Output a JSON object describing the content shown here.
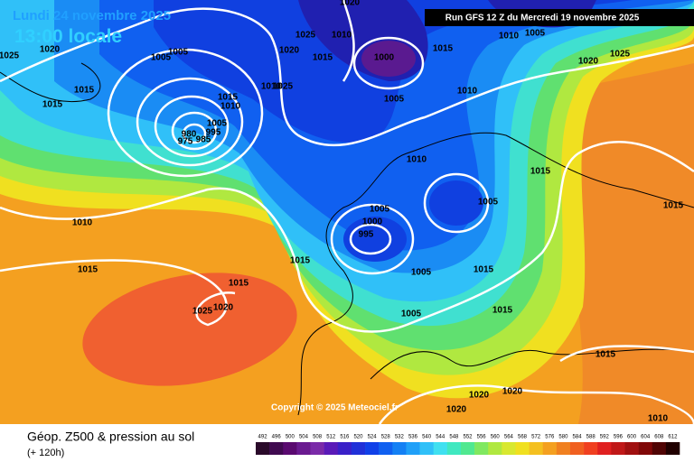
{
  "header": {
    "date": "Lundi 24 novembre 2025",
    "time": "13:00 locale",
    "run": "Run GFS 12 Z du Mercredi 19 novembre 2025"
  },
  "map": {
    "copyright": "Copyright © 2025 Meteociel.fr",
    "isobar_labels": [
      "1025",
      "1020",
      "1005",
      "1005",
      "1015",
      "1015",
      "1010",
      "1015",
      "1005",
      "995",
      "980",
      "975",
      "985",
      "1020",
      "1025",
      "1015",
      "1010",
      "1010",
      "1025",
      "1020",
      "1000",
      "1005",
      "1015",
      "1005",
      "1010",
      "1020",
      "1025",
      "1010",
      "1010",
      "1015",
      "1005",
      "1005",
      "1000",
      "995",
      "1015",
      "1010",
      "1015",
      "1015",
      "1015",
      "1005",
      "1015",
      "1005",
      "1015",
      "1025",
      "1020",
      "1015",
      "1020",
      "1020",
      "1020",
      "1010"
    ]
  },
  "footer": {
    "title": "Géop. Z500 & pression au sol",
    "subtitle": "(+ 120h)"
  },
  "colorbar": {
    "values": [
      492,
      496,
      500,
      504,
      508,
      512,
      516,
      520,
      524,
      528,
      532,
      536,
      540,
      544,
      548,
      552,
      556,
      560,
      564,
      568,
      572,
      576,
      580,
      584,
      588,
      592,
      596,
      600,
      604,
      608,
      612
    ],
    "colors": [
      "#2a0a2a",
      "#400a50",
      "#5a0a70",
      "#6a1a90",
      "#7a2aa8",
      "#5a1ab8",
      "#3a20c8",
      "#2030d8",
      "#1040e8",
      "#1060f0",
      "#1480f4",
      "#20a0f8",
      "#30c0f8",
      "#40e0f0",
      "#40e8c0",
      "#50e890",
      "#80e860",
      "#b0e840",
      "#d8e830",
      "#f0e020",
      "#f4c020",
      "#f4a020",
      "#f08020",
      "#f06020",
      "#f04020",
      "#e02020",
      "#c01818",
      "#a01010",
      "#800808",
      "#500404",
      "#200000"
    ]
  }
}
